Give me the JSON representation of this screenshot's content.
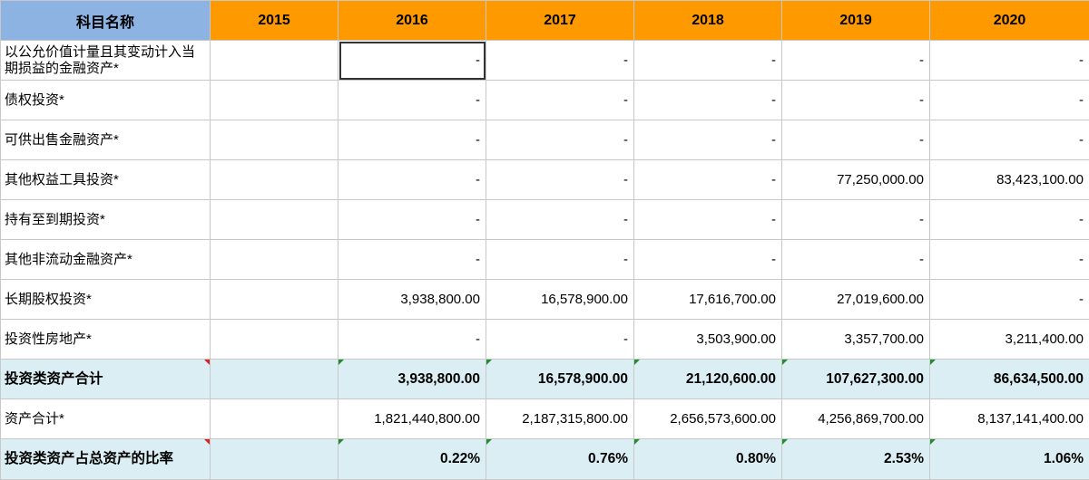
{
  "header": {
    "name_col": "科目名称",
    "years": [
      "2015",
      "2016",
      "2017",
      "2018",
      "2019",
      "2020"
    ]
  },
  "rows": [
    {
      "label": "以公允价值计量且其变动计入当期损益的金融资产*",
      "values": [
        "",
        "-",
        "-",
        "-",
        "-",
        "-"
      ]
    },
    {
      "label": "债权投资*",
      "values": [
        "",
        "-",
        "-",
        "-",
        "-",
        "-"
      ]
    },
    {
      "label": "可供出售金融资产*",
      "values": [
        "",
        "-",
        "-",
        "-",
        "-",
        "-"
      ]
    },
    {
      "label": "其他权益工具投资*",
      "values": [
        "",
        "-",
        "-",
        "-",
        "77,250,000.00",
        "83,423,100.00"
      ]
    },
    {
      "label": "持有至到期投资*",
      "values": [
        "",
        "-",
        "-",
        "-",
        "-",
        "-"
      ]
    },
    {
      "label": "其他非流动金融资产*",
      "values": [
        "",
        "-",
        "-",
        "-",
        "-",
        "-"
      ]
    },
    {
      "label": "长期股权投资*",
      "values": [
        "",
        "3,938,800.00",
        "16,578,900.00",
        "17,616,700.00",
        "27,019,600.00",
        "-"
      ]
    },
    {
      "label": "投资性房地产*",
      "values": [
        "",
        "-",
        "-",
        "3,503,900.00",
        "3,357,700.00",
        "3,211,400.00"
      ]
    },
    {
      "label": "投资类资产合计",
      "values": [
        "",
        "3,938,800.00",
        "16,578,900.00",
        "21,120,600.00",
        "107,627,300.00",
        "86,634,500.00"
      ]
    },
    {
      "label": "资产合计*",
      "values": [
        "",
        "1,821,440,800.00",
        "2,187,315,800.00",
        "2,656,573,600.00",
        "4,256,869,700.00",
        "8,137,141,400.00"
      ]
    },
    {
      "label": "投资类资产占总资产的比率",
      "values": [
        "",
        "0.22%",
        "0.76%",
        "0.80%",
        "2.53%",
        "1.06%"
      ]
    }
  ],
  "colors": {
    "header_name_bg": "#8db3e2",
    "header_year_bg": "#ff9900",
    "subtotal_bg": "#daeef3",
    "comment_marker": "#e02020",
    "formula_marker": "#1e8f2e"
  }
}
